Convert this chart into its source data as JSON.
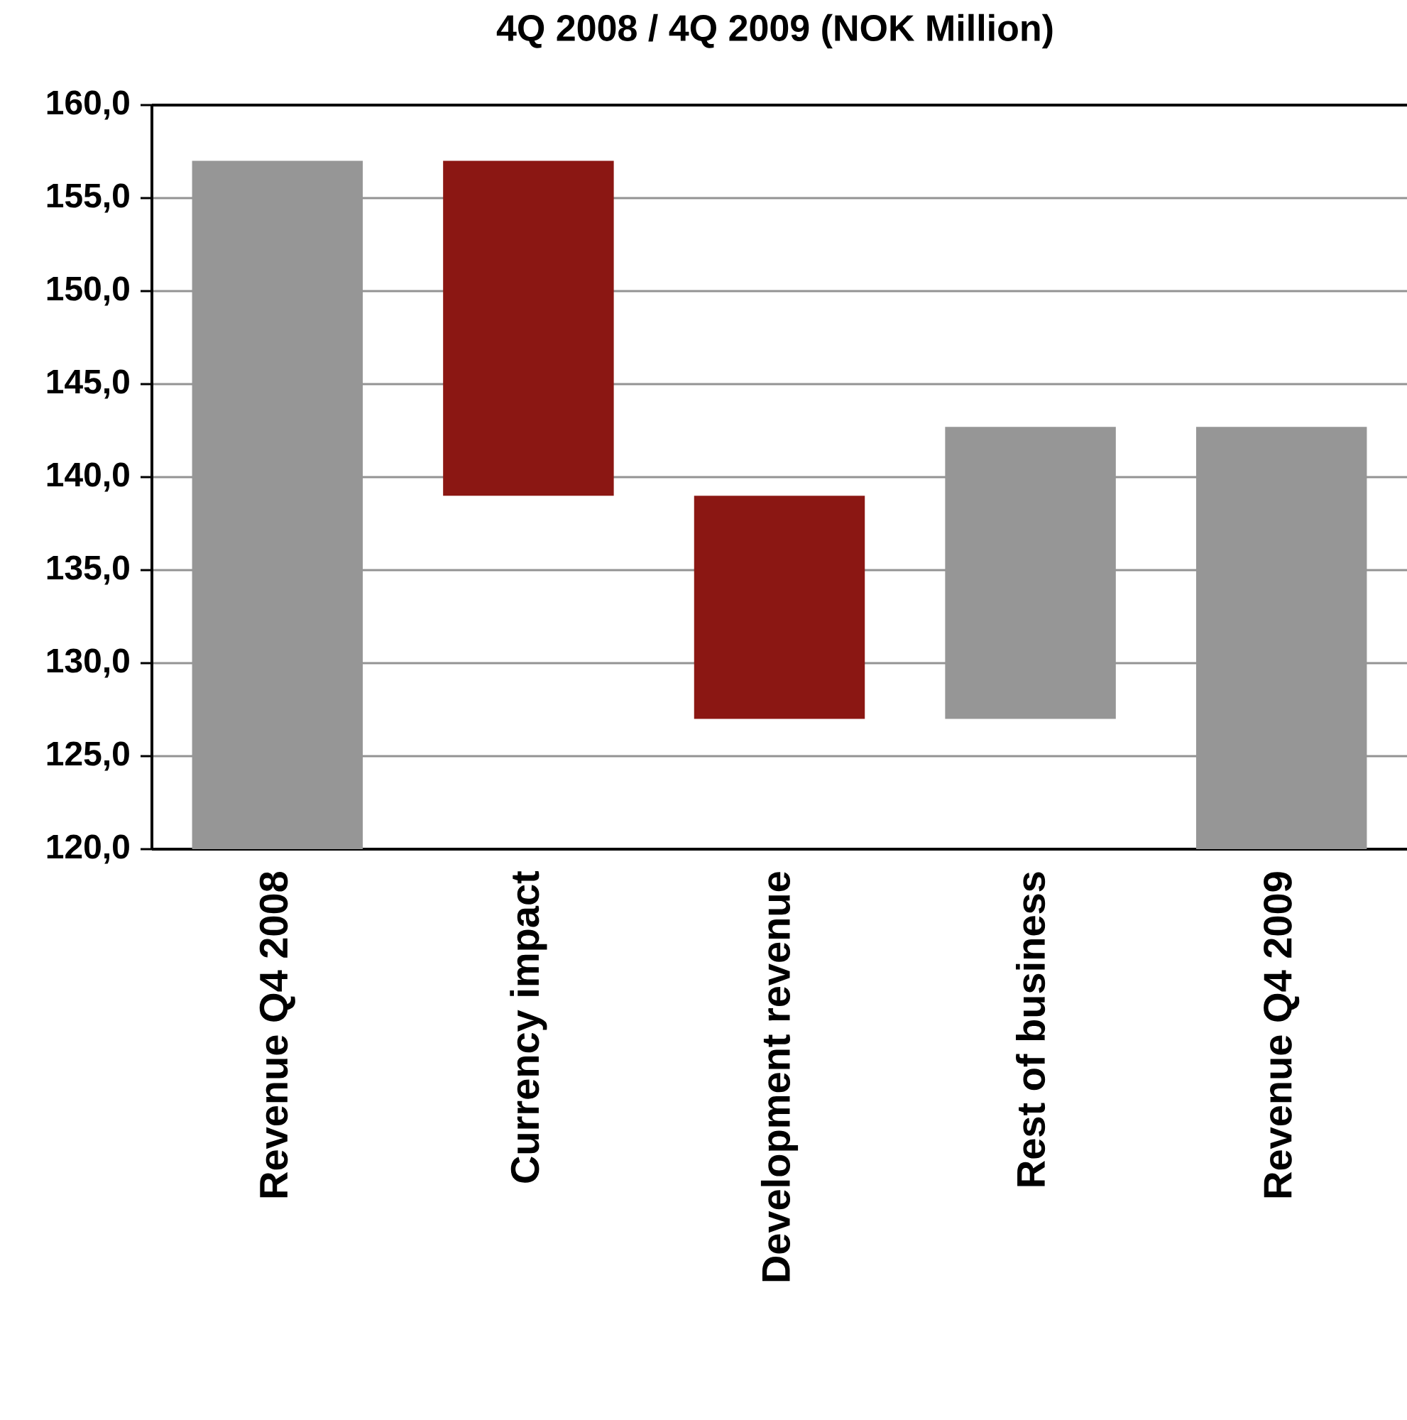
{
  "chart_data": {
    "type": "bar",
    "title": "4Q 2008 / 4Q 2009 (NOK Million)",
    "categories": [
      "Revenue Q4 2008",
      "Currency impact",
      "Development revenue",
      "Rest of business",
      "Revenue Q4 2009"
    ],
    "values": [
      157.0,
      -18.0,
      -12.0,
      15.7,
      142.7
    ],
    "base": [
      null,
      157.0,
      139.0,
      127.0,
      null
    ],
    "colors": [
      "#969696",
      "#8b1713",
      "#8b1713",
      "#969696",
      "#969696"
    ],
    "ylim": [
      120,
      160
    ],
    "yticks": [
      {
        "value": 120,
        "label": "120,0"
      },
      {
        "value": 125,
        "label": "125,0"
      },
      {
        "value": 130,
        "label": "130,0"
      },
      {
        "value": 135,
        "label": "135,0"
      },
      {
        "value": 140,
        "label": "140,0"
      },
      {
        "value": 145,
        "label": "145,0"
      },
      {
        "value": 150,
        "label": "150,0"
      },
      {
        "value": 155,
        "label": "155,0"
      },
      {
        "value": 160,
        "label": "160,0"
      }
    ],
    "grid": "y"
  }
}
